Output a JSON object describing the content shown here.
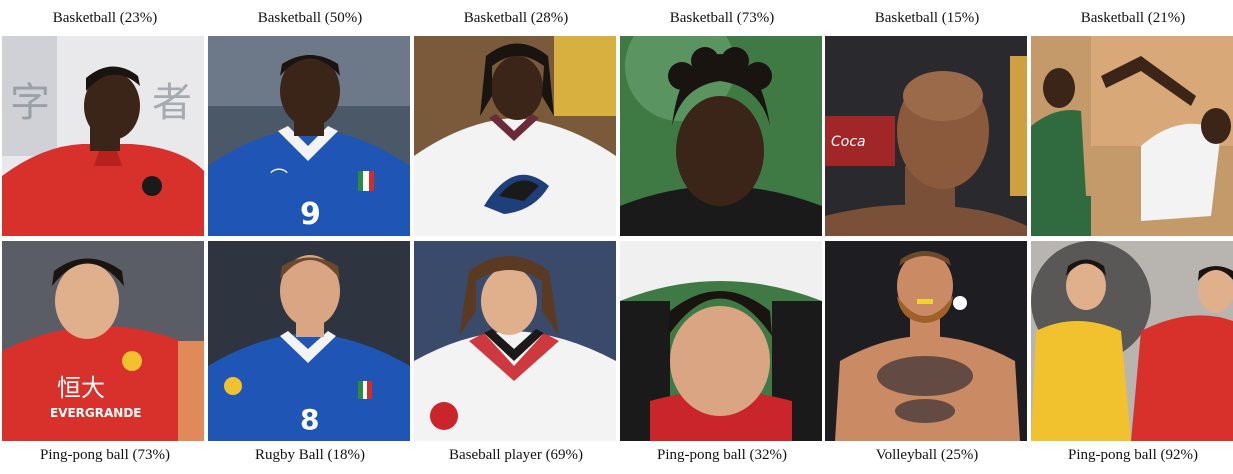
{
  "top_captions": [
    "Basketball (23%)",
    "Basketball (50%)",
    "Basketball (28%)",
    "Basketball (73%)",
    "Basketball (15%)",
    "Basketball (21%)"
  ],
  "bottom_captions": [
    "Ping-pong ball (73%)",
    "Rugby Ball (18%)",
    "Baseball player (69%)",
    "Ping-pong ball (32%)",
    "Volleyball (25%)",
    "Ping-pong ball (92%)"
  ],
  "jersey_numbers": [
    "9",
    "8"
  ],
  "jersey_text": [
    "恒大",
    "EVERGRANDE"
  ],
  "colors": {
    "red_jersey": "#d8302b",
    "blue_jersey": "#1f56b5",
    "white_jersey": "#f3f3f3",
    "yellow_jersey": "#f2c12e",
    "green_jersey": "#2f6b3f",
    "skin_dark": "#3b2519",
    "skin_medium": "#b77b56",
    "skin_light": "#e0b08d",
    "hair_dark": "#1a1410"
  }
}
